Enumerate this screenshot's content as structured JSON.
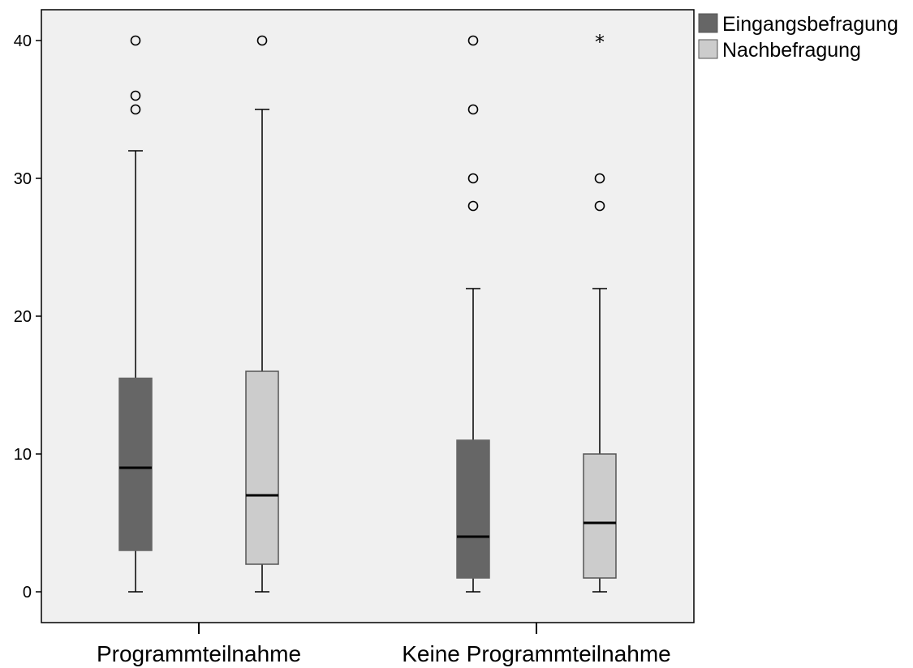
{
  "chart_data": {
    "type": "boxplot",
    "title": "",
    "xlabel": "",
    "ylabel": "",
    "ylim": [
      -2.2,
      42.5
    ],
    "yticks": [
      "0",
      "10",
      "20",
      "30",
      "40"
    ],
    "grid": false,
    "legend_position": "top-right",
    "categories": [
      "Programmteilnahme",
      "Keine Programmteilnahme"
    ],
    "series": [
      {
        "name": "Eingangsbefragung",
        "color": "#666666",
        "boxes": [
          {
            "whisker_low": 0,
            "q1": 3,
            "median": 9,
            "q3": 15.5,
            "whisker_high": 32,
            "outliers": [
              35,
              36,
              40
            ],
            "extremes": []
          },
          {
            "whisker_low": 0,
            "q1": 1,
            "median": 4,
            "q3": 11,
            "whisker_high": 22,
            "outliers": [
              28,
              30,
              35,
              40
            ],
            "extremes": []
          }
        ]
      },
      {
        "name": "Nachbefragung",
        "color": "#cccccc",
        "boxes": [
          {
            "whisker_low": 0,
            "q1": 2,
            "median": 7,
            "q3": 16,
            "whisker_high": 35,
            "outliers": [
              40
            ],
            "extremes": []
          },
          {
            "whisker_low": 0,
            "q1": 1,
            "median": 5,
            "q3": 10,
            "whisker_high": 22,
            "outliers": [
              28,
              30
            ],
            "extremes": [
              40
            ]
          }
        ]
      }
    ]
  }
}
